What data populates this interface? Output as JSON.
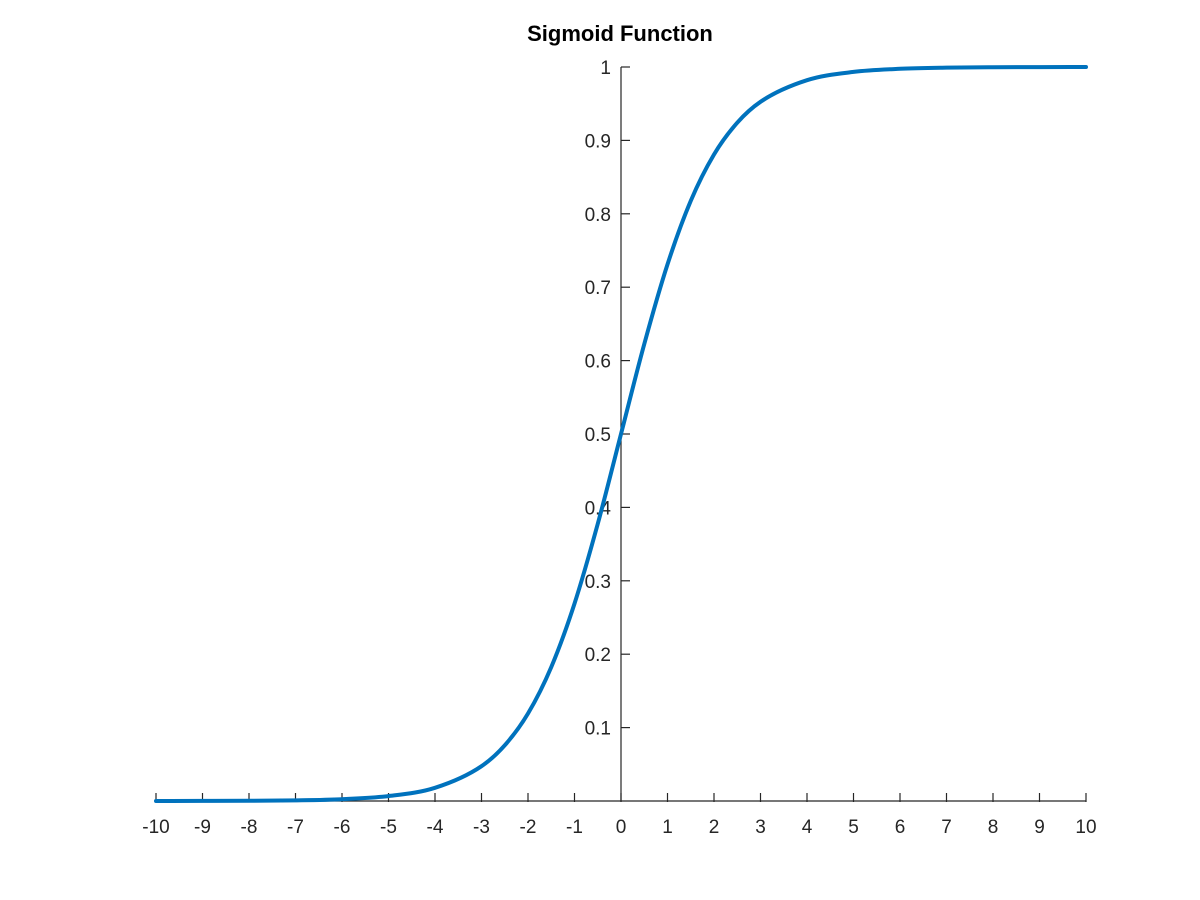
{
  "chart_data": {
    "type": "line",
    "title": "Sigmoid Function",
    "xlabel": "",
    "ylabel": "",
    "xlim": [
      -10,
      10
    ],
    "ylim": [
      0,
      1
    ],
    "x_ticks": [
      "-10",
      "-9",
      "-8",
      "-7",
      "-6",
      "-5",
      "-4",
      "-3",
      "-2",
      "-1",
      "0",
      "1",
      "2",
      "3",
      "4",
      "5",
      "6",
      "7",
      "8",
      "9",
      "10"
    ],
    "y_ticks": [
      "0.1",
      "0.2",
      "0.3",
      "0.4",
      "0.5",
      "0.6",
      "0.7",
      "0.8",
      "0.9",
      "1"
    ],
    "axis_location": "origin",
    "grid": false,
    "series": [
      {
        "color": "#0072BD",
        "x": [
          -10,
          -9,
          -8,
          -7,
          -6,
          -5,
          -4,
          -3,
          -2.5,
          -2,
          -1.5,
          -1,
          -0.5,
          0,
          0.5,
          1,
          1.5,
          2,
          2.5,
          3,
          4,
          5,
          6,
          7,
          8,
          9,
          10
        ],
        "y": [
          4.54e-05,
          0.0001234,
          0.0003354,
          0.0009111,
          0.0024726,
          0.0066929,
          0.0179862,
          0.0474259,
          0.0758582,
          0.1192029,
          0.1824255,
          0.2689414,
          0.3775407,
          0.5,
          0.6224593,
          0.7310586,
          0.8175745,
          0.8807971,
          0.9241418,
          0.9525741,
          0.9820138,
          0.9933071,
          0.9975274,
          0.9990889,
          0.9996646,
          0.9998766,
          0.9999546
        ]
      }
    ]
  }
}
